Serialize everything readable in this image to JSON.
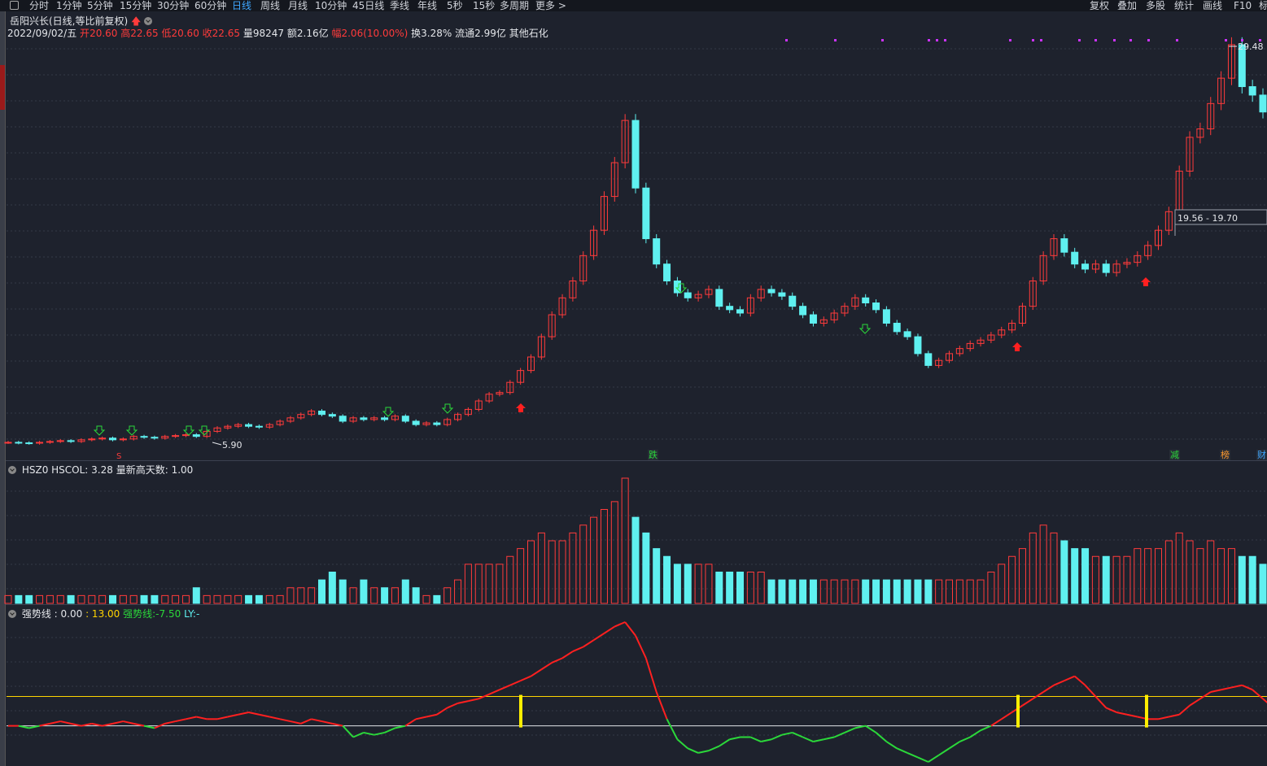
{
  "toolbar": {
    "periods": [
      "分时",
      "1分钟",
      "5分钟",
      "15分钟",
      "30分钟",
      "60分钟",
      "日线",
      "周线",
      "月线",
      "10分钟",
      "45日线",
      "季线",
      "年线",
      "5秒",
      "15秒",
      "多周期",
      "更多 >"
    ],
    "active_period": "日线",
    "right_buttons": [
      "复权",
      "叠加",
      "多股",
      "统计",
      "画线",
      "F10",
      "标"
    ]
  },
  "stock": {
    "title": "岳阳兴长(日线,等比前复权)",
    "date": "2022/09/02/五",
    "open_label": "开",
    "open": "20.60",
    "high_label": "高",
    "high": "22.65",
    "low_label": "低",
    "low": "20.60",
    "close_label": "收",
    "close": "22.65",
    "volume_label": "量",
    "volume": "98247",
    "amount_label": "额",
    "amount": "2.16亿",
    "change_label": "幅",
    "change": "2.06(10.00%)",
    "turnover_label": "换",
    "turnover": "3.28%",
    "float_label": "流通",
    "float": "2.99亿",
    "sector": "其他石化"
  },
  "price_panel": {
    "high_marker": "29.48",
    "low_marker": "5.90",
    "range_box": "19.56 - 19.70",
    "events": [
      {
        "text": "跌",
        "color": "#2bd83a"
      },
      {
        "text": "减",
        "color": "#2bd83a"
      },
      {
        "text": "榜",
        "color": "#ff9a2e"
      },
      {
        "text": "财",
        "color": "#3fa7ff"
      }
    ]
  },
  "volume_panel": {
    "label": "HSZ0",
    "hscol": "HSCOL: 3.28",
    "new_high": "量新高天数: 1.00"
  },
  "indicator_panel": {
    "name": "强势线",
    "v1": ": 0.00",
    "v2": ": 13.00",
    "v3_label": "强势线:",
    "v3": "-7.50",
    "ly_label": "LY:",
    "ly": "-"
  },
  "colors": {
    "background": "#1e222d",
    "up": "#ff3b3b",
    "down": "#5ff0f0",
    "magenta_marks": "#cc33ff",
    "yellow_line": "#ffd400"
  },
  "chart_data": {
    "type": "candlestick",
    "price_series": [
      5.95,
      5.92,
      5.9,
      5.95,
      6.0,
      6.05,
      6.0,
      6.1,
      6.15,
      6.2,
      6.1,
      6.15,
      6.3,
      6.25,
      6.2,
      6.3,
      6.35,
      6.4,
      6.3,
      6.6,
      6.8,
      6.9,
      7.0,
      6.9,
      6.85,
      7.0,
      7.2,
      7.4,
      7.6,
      7.8,
      7.6,
      7.5,
      7.2,
      7.4,
      7.3,
      7.4,
      7.3,
      7.5,
      7.2,
      7.0,
      7.1,
      7.0,
      7.3,
      7.6,
      7.9,
      8.4,
      8.8,
      8.9,
      9.5,
      10.2,
      11.0,
      12.2,
      13.5,
      14.5,
      15.5,
      17.0,
      18.5,
      20.5,
      22.5,
      25.0,
      21.0,
      18.0,
      16.5,
      15.5,
      14.8,
      14.5,
      14.7,
      15.0,
      14.0,
      13.8,
      13.6,
      14.5,
      15.0,
      14.8,
      14.6,
      14.0,
      13.5,
      13.0,
      13.2,
      13.6,
      14.0,
      14.5,
      14.2,
      13.8,
      13.0,
      12.5,
      12.2,
      11.2,
      10.5,
      10.8,
      11.2,
      11.5,
      11.8,
      12.0,
      12.3,
      12.6,
      13.0,
      14.0,
      15.5,
      17.0,
      18.0,
      17.2,
      16.5,
      16.2,
      16.5,
      16.0,
      16.5,
      16.6,
      17.0,
      17.6,
      18.5,
      19.6,
      22.0,
      24.0,
      24.5,
      26.0,
      27.5,
      29.48,
      27.0,
      26.5,
      25.5
    ],
    "ylim": [
      5.9,
      29.48
    ],
    "volume_series": [
      1,
      1,
      1,
      1,
      1,
      1,
      1,
      1,
      1,
      1,
      1,
      1,
      1,
      1,
      1,
      1,
      1,
      1,
      2,
      1,
      1,
      1,
      1,
      1,
      1,
      1,
      1,
      2,
      2,
      2,
      3,
      4,
      3,
      2,
      3,
      2,
      2,
      2,
      3,
      2,
      1,
      1,
      2,
      3,
      5,
      5,
      5,
      5,
      6,
      7,
      8,
      9,
      8,
      8,
      9,
      10,
      11,
      12,
      13,
      16,
      11,
      9,
      7,
      6,
      5,
      5,
      5,
      5,
      4,
      4,
      4,
      4,
      4,
      3,
      3,
      3,
      3,
      3,
      3,
      3,
      3,
      3,
      3,
      3,
      3,
      3,
      3,
      3,
      3,
      3,
      3,
      3,
      3,
      3,
      4,
      5,
      6,
      7,
      9,
      10,
      9,
      8,
      7,
      7,
      6,
      6,
      6,
      6,
      7,
      7,
      7,
      8,
      9,
      8,
      7,
      8,
      7,
      7,
      6,
      6,
      5
    ],
    "indicator_series": [
      0,
      0,
      -1,
      0,
      1,
      2,
      1,
      0,
      1,
      0,
      1,
      2,
      1,
      0,
      -1,
      1,
      2,
      3,
      4,
      3,
      3,
      4,
      5,
      6,
      5,
      4,
      3,
      2,
      1,
      3,
      2,
      1,
      0,
      -5,
      -3,
      -4,
      -3,
      -1,
      0,
      3,
      4,
      5,
      8,
      10,
      11,
      12,
      14,
      16,
      18,
      20,
      22,
      25,
      28,
      30,
      33,
      35,
      38,
      41,
      44,
      46,
      40,
      30,
      15,
      3,
      -6,
      -10,
      -12,
      -11,
      -9,
      -6,
      -5,
      -5,
      -7,
      -6,
      -4,
      -3,
      -5,
      -7,
      -6,
      -5,
      -3,
      -1,
      0,
      -3,
      -7,
      -10,
      -12,
      -14,
      -16,
      -13,
      -10,
      -7,
      -5,
      -2,
      0,
      3,
      6,
      9,
      12,
      15,
      18,
      20,
      22,
      18,
      13,
      8,
      6,
      5,
      4,
      3,
      3,
      4,
      5,
      9,
      12,
      15,
      16,
      17,
      18,
      16,
      12,
      8,
      4,
      -2
    ],
    "thresholds": [
      0,
      13
    ]
  }
}
